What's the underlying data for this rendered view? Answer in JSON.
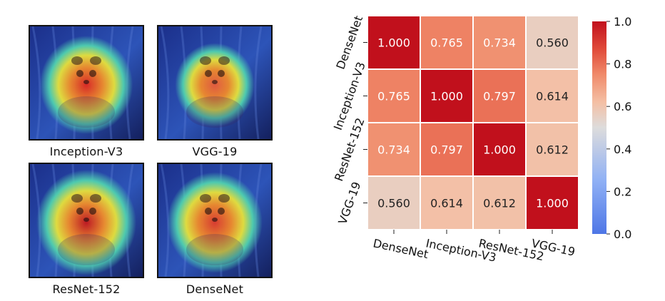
{
  "cams": [
    {
      "model": "Inception-V3",
      "hot": "#e0271f",
      "spread": 0.85
    },
    {
      "model": "VGG-19",
      "hot": "#e85a3a",
      "spread": 0.55
    },
    {
      "model": "ResNet-152",
      "hot": "#c4161c",
      "spread": 1.0
    },
    {
      "model": "DenseNet",
      "hot": "#e03a2a",
      "spread": 0.9
    }
  ],
  "chart_data": {
    "type": "heatmap",
    "title": "",
    "xlabel": "",
    "ylabel": "",
    "x_categories": [
      "DenseNet",
      "Inception-V3",
      "ResNet-152",
      "VGG-19"
    ],
    "y_categories": [
      "DenseNet",
      "Inception-V3",
      "ResNet-152",
      "VGG-19"
    ],
    "values": [
      [
        1.0,
        0.765,
        0.734,
        0.56
      ],
      [
        0.765,
        1.0,
        0.797,
        0.614
      ],
      [
        0.734,
        0.797,
        1.0,
        0.612
      ],
      [
        0.56,
        0.614,
        0.612,
        1.0
      ]
    ],
    "value_labels": [
      [
        "1.000",
        "0.765",
        "0.734",
        "0.560"
      ],
      [
        "0.765",
        "1.000",
        "0.797",
        "0.614"
      ],
      [
        "0.734",
        "0.797",
        "1.000",
        "0.612"
      ],
      [
        "0.560",
        "0.614",
        "0.612",
        "1.000"
      ]
    ],
    "colorbar": {
      "range": [
        0.0,
        1.0
      ],
      "ticks": [
        0.0,
        0.2,
        0.4,
        0.6,
        0.8,
        1.0
      ],
      "tick_labels": [
        "0.0",
        "0.2",
        "0.4",
        "0.6",
        "0.8",
        "1.0"
      ],
      "colormap": "coolwarm",
      "colors": {
        "low": "#4e76e6",
        "mid": "#dddcdc",
        "high": "#c1101c"
      }
    },
    "grid": false,
    "cell_border_color": "#ffffff"
  }
}
